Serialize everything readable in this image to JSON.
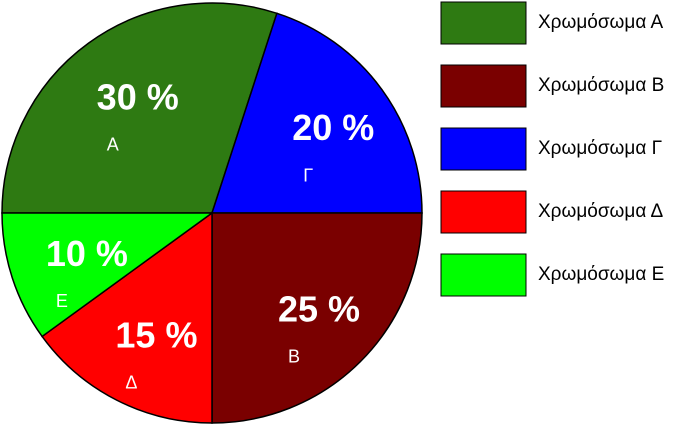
{
  "chart_data": {
    "type": "pie",
    "labels": [
      "Χρωμόσωμα Α",
      "Χρωμόσωμα Β",
      "Χρωμόσωμα Γ",
      "Χρωμόσωμα Δ",
      "Χρωμόσωμα Ε"
    ],
    "short_labels": [
      "Α",
      "Β",
      "Γ",
      "Δ",
      "Ε"
    ],
    "values": [
      30,
      25,
      20,
      15,
      10
    ],
    "value_labels": [
      "30 %",
      "25 %",
      "20 %",
      "15 %",
      "10 %"
    ],
    "colors": [
      "#2e7a12",
      "#7a0000",
      "#0000ff",
      "#ff0000",
      "#00ff00"
    ]
  }
}
